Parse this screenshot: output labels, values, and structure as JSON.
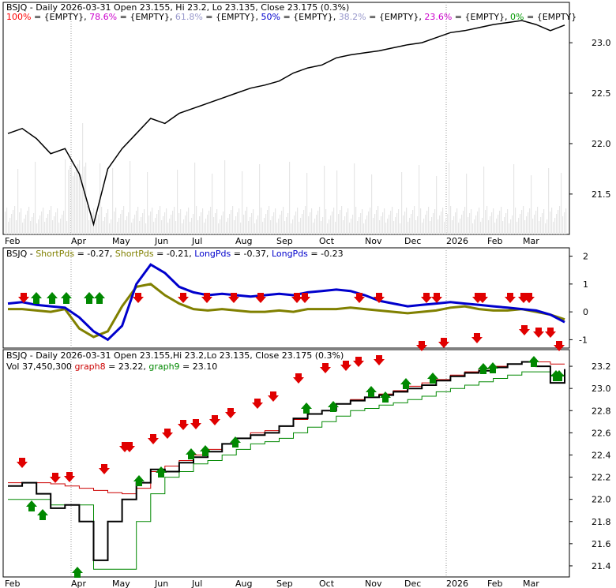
{
  "chart_data": [
    {
      "type": "line",
      "panel": "price",
      "header": [
        {
          "text": "BSJQ - Daily 2026-03-31 Open 23.155, Hi 23.2, Lo 23.135, Close 23.175 (0.3%)",
          "color": "#000000"
        }
      ],
      "fib_legend": [
        {
          "label": "100%",
          "value": " = {EMPTY}, ",
          "color": "#ff0000"
        },
        {
          "label": "78.6%",
          "value": " = {EMPTY}, ",
          "color": "#cc00cc"
        },
        {
          "label": "61.8%",
          "value": " = {EMPTY}, ",
          "color": "#9999cc"
        },
        {
          "label": "50%",
          "value": " = {EMPTY}, ",
          "color": "#0000cc"
        },
        {
          "label": "38.2%",
          "value": " = {EMPTY}, ",
          "color": "#9999cc"
        },
        {
          "label": "23.6%",
          "value": " = {EMPTY}, ",
          "color": "#cc00cc"
        },
        {
          "label": "0%",
          "value": " = {EMPTY}",
          "color": "#009900"
        }
      ],
      "x_ticks": [
        "Feb",
        "Apr",
        "May",
        "Jun",
        "Jul",
        "Aug",
        "Sep",
        "Oct",
        "Nov",
        "Dec",
        "2026",
        "Feb",
        "Mar"
      ],
      "y_ticks": [
        "23.0",
        "22.5",
        "22.0",
        "21.5"
      ],
      "ylim": [
        21.1,
        23.4
      ],
      "series": [
        {
          "values": [
            22.1,
            22.15,
            22.05,
            21.9,
            21.95,
            21.7,
            21.2,
            21.75,
            21.95,
            22.1,
            22.25,
            22.2,
            22.3,
            22.35,
            22.4,
            22.45,
            22.5,
            22.55,
            22.58,
            22.62,
            22.7,
            22.75,
            22.78,
            22.85,
            22.88,
            22.9,
            22.92,
            22.95,
            22.98,
            23.0,
            23.05,
            23.1,
            23.12,
            23.15,
            23.18,
            23.2,
            23.22,
            23.18,
            23.12,
            23.175
          ]
        }
      ]
    },
    {
      "type": "line",
      "panel": "momentum",
      "header": [
        {
          "text": "BSJQ - ",
          "color": "#000000"
        },
        {
          "text": "ShortPds",
          "color": "#808000"
        },
        {
          "text": " = -0.27, ",
          "color": "#000000"
        },
        {
          "text": "ShortPds",
          "color": "#808000"
        },
        {
          "text": " = -0.21, ",
          "color": "#000000"
        },
        {
          "text": "LongPds",
          "color": "#0000cc"
        },
        {
          "text": " = -0.37, ",
          "color": "#000000"
        },
        {
          "text": "LongPds",
          "color": "#0000cc"
        },
        {
          "text": " = -0.23",
          "color": "#000000"
        }
      ],
      "y_ticks": [
        "2",
        "1",
        "0",
        "-1"
      ],
      "ylim": [
        -1.3,
        2.3
      ],
      "series": [
        {
          "name": "ShortPds",
          "values": [
            0.1,
            0.1,
            0.05,
            0.0,
            0.1,
            -0.6,
            -0.9,
            -0.7,
            0.2,
            0.9,
            1.0,
            0.6,
            0.3,
            0.1,
            0.05,
            0.1,
            0.05,
            0.0,
            0.0,
            0.05,
            0.0,
            0.1,
            0.1,
            0.1,
            0.15,
            0.1,
            0.05,
            0.0,
            -0.05,
            0.0,
            0.05,
            0.15,
            0.2,
            0.1,
            0.05,
            0.05,
            0.1,
            0.0,
            -0.1,
            -0.27
          ],
          "color": "#808000"
        },
        {
          "name": "LongPds",
          "values": [
            0.3,
            0.35,
            0.25,
            0.2,
            0.15,
            -0.2,
            -0.7,
            -1.0,
            -0.5,
            1.0,
            1.7,
            1.4,
            0.9,
            0.7,
            0.6,
            0.65,
            0.6,
            0.55,
            0.6,
            0.65,
            0.6,
            0.7,
            0.75,
            0.8,
            0.75,
            0.6,
            0.4,
            0.3,
            0.2,
            0.25,
            0.3,
            0.35,
            0.3,
            0.25,
            0.2,
            0.15,
            0.1,
            0.05,
            -0.1,
            -0.37
          ],
          "color": "#0000cc"
        }
      ]
    },
    {
      "type": "line",
      "panel": "signals",
      "header": [
        {
          "text": "BSJQ - Daily 2026-03-31 Open 23.155,Hi 23.2,Lo 23.135, Close 23.175 (0.3%)",
          "color": "#000000"
        }
      ],
      "subheader": [
        {
          "text": "Vol 37,450,300 ",
          "color": "#000000"
        },
        {
          "text": "graph8",
          "color": "#cc0000"
        },
        {
          "text": " = 23.22, ",
          "color": "#000000"
        },
        {
          "text": "graph9",
          "color": "#008800"
        },
        {
          "text": " = 23.10",
          "color": "#000000"
        }
      ],
      "x_ticks": [
        "Feb",
        "Apr",
        "May",
        "Jun",
        "Jul",
        "Aug",
        "Sep",
        "Oct",
        "Nov",
        "Dec",
        "2026",
        "Feb",
        "Mar"
      ],
      "y_ticks": [
        "23.2",
        "23.0",
        "22.8",
        "22.6",
        "22.4",
        "22.2",
        "22.0",
        "21.8",
        "21.6",
        "21.4"
      ],
      "ylim": [
        21.3,
        23.35
      ],
      "series": [
        {
          "name": "graph8",
          "values": [
            22.15,
            22.15,
            22.15,
            22.14,
            22.12,
            22.1,
            22.08,
            22.06,
            22.05,
            22.1,
            22.25,
            22.3,
            22.35,
            22.4,
            22.45,
            22.5,
            22.55,
            22.6,
            22.62,
            22.66,
            22.72,
            22.77,
            22.8,
            22.86,
            22.9,
            22.92,
            22.95,
            22.98,
            23.02,
            23.05,
            23.08,
            23.12,
            23.15,
            23.18,
            23.2,
            23.22,
            23.24,
            23.24,
            23.22,
            23.22
          ],
          "color": "#cc0000"
        },
        {
          "name": "graph9",
          "values": [
            22.0,
            22.0,
            22.0,
            21.95,
            21.95,
            21.95,
            21.37,
            21.37,
            21.37,
            21.8,
            22.05,
            22.2,
            22.25,
            22.32,
            22.35,
            22.4,
            22.45,
            22.5,
            22.52,
            22.55,
            22.6,
            22.65,
            22.7,
            22.75,
            22.8,
            22.82,
            22.85,
            22.87,
            22.9,
            22.93,
            22.97,
            23.0,
            23.03,
            23.06,
            23.09,
            23.12,
            23.15,
            23.15,
            23.12,
            23.1
          ],
          "color": "#008800"
        },
        {
          "name": "close",
          "values": [
            22.12,
            22.15,
            22.05,
            21.92,
            21.95,
            21.8,
            21.45,
            21.8,
            22.0,
            22.15,
            22.27,
            22.25,
            22.33,
            22.38,
            22.43,
            22.5,
            22.55,
            22.58,
            22.6,
            22.66,
            22.73,
            22.77,
            22.8,
            22.86,
            22.89,
            22.92,
            22.94,
            22.97,
            23.0,
            23.03,
            23.07,
            23.11,
            23.14,
            23.16,
            23.19,
            23.22,
            23.24,
            23.2,
            23.05,
            23.175
          ],
          "color": "#000000"
        }
      ]
    }
  ]
}
